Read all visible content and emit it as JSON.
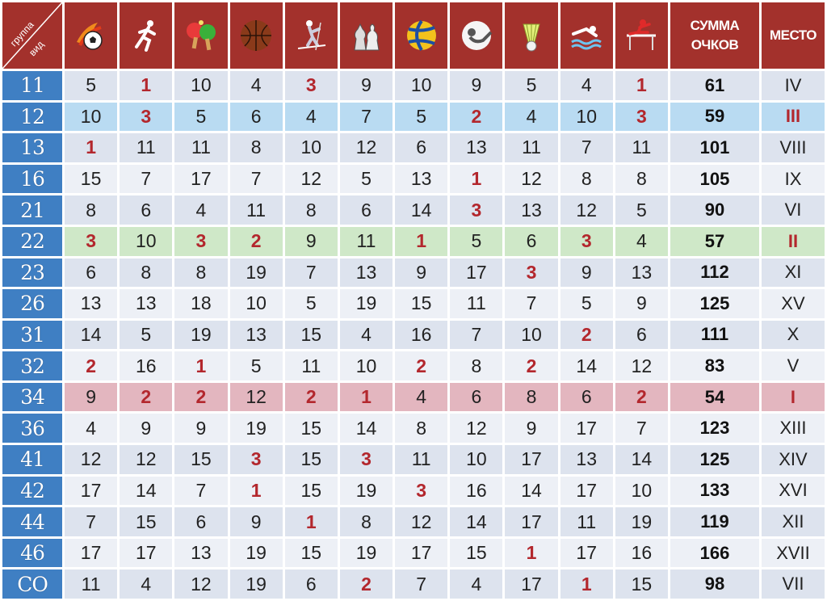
{
  "header": {
    "corner_top": "группа",
    "corner_bottom": "вид",
    "sports_icons": [
      "football-icon",
      "running-icon",
      "table-tennis-icon",
      "basketball-icon",
      "skiing-icon",
      "chess-icon",
      "volleyball-icon",
      "shooting-icon",
      "badminton-icon",
      "swimming-icon",
      "hurdles-icon"
    ],
    "sum_line1": "СУММА",
    "sum_line2": "ОЧКОВ",
    "place": "МЕСТО"
  },
  "colors": {
    "header_bg": "#a3312c",
    "group_bg": "#3f7fc3",
    "top_value": "#b3272d",
    "highlight_blue": "#b9dbf2",
    "highlight_green": "#cfe8c8",
    "highlight_red": "#e3b6bf"
  },
  "rows": [
    {
      "group": "11",
      "scores": [
        "5",
        "1",
        "10",
        "4",
        "3",
        "9",
        "10",
        "9",
        "5",
        "4",
        "1"
      ],
      "sum": "61",
      "place": "IV"
    },
    {
      "group": "12",
      "scores": [
        "10",
        "3",
        "5",
        "6",
        "4",
        "7",
        "5",
        "2",
        "4",
        "10",
        "3"
      ],
      "sum": "59",
      "place": "III"
    },
    {
      "group": "13",
      "scores": [
        "1",
        "11",
        "11",
        "8",
        "10",
        "12",
        "6",
        "13",
        "11",
        "7",
        "11"
      ],
      "sum": "101",
      "place": "VIII"
    },
    {
      "group": "16",
      "scores": [
        "15",
        "7",
        "17",
        "7",
        "12",
        "5",
        "13",
        "1",
        "12",
        "8",
        "8"
      ],
      "sum": "105",
      "place": "IX"
    },
    {
      "group": "21",
      "scores": [
        "8",
        "6",
        "4",
        "11",
        "8",
        "6",
        "14",
        "3",
        "13",
        "12",
        "5"
      ],
      "sum": "90",
      "place": "VI"
    },
    {
      "group": "22",
      "scores": [
        "3",
        "10",
        "3",
        "2",
        "9",
        "11",
        "1",
        "5",
        "6",
        "3",
        "4"
      ],
      "sum": "57",
      "place": "II"
    },
    {
      "group": "23",
      "scores": [
        "6",
        "8",
        "8",
        "19",
        "7",
        "13",
        "9",
        "17",
        "3",
        "9",
        "13"
      ],
      "sum": "112",
      "place": "XI"
    },
    {
      "group": "26",
      "scores": [
        "13",
        "13",
        "18",
        "10",
        "5",
        "19",
        "15",
        "11",
        "7",
        "5",
        "9"
      ],
      "sum": "125",
      "place": "XV"
    },
    {
      "group": "31",
      "scores": [
        "14",
        "5",
        "19",
        "13",
        "15",
        "4",
        "16",
        "7",
        "10",
        "2",
        "6"
      ],
      "sum": "111",
      "place": "X"
    },
    {
      "group": "32",
      "scores": [
        "2",
        "16",
        "1",
        "5",
        "11",
        "10",
        "2",
        "8",
        "2",
        "14",
        "12"
      ],
      "sum": "83",
      "place": "V"
    },
    {
      "group": "34",
      "scores": [
        "9",
        "2",
        "2",
        "12",
        "2",
        "1",
        "4",
        "6",
        "8",
        "6",
        "2"
      ],
      "sum": "54",
      "place": "I"
    },
    {
      "group": "36",
      "scores": [
        "4",
        "9",
        "9",
        "19",
        "15",
        "14",
        "8",
        "12",
        "9",
        "17",
        "7"
      ],
      "sum": "123",
      "place": "XIII"
    },
    {
      "group": "41",
      "scores": [
        "12",
        "12",
        "15",
        "3",
        "15",
        "3",
        "11",
        "10",
        "17",
        "13",
        "14"
      ],
      "sum": "125",
      "place": "XIV"
    },
    {
      "group": "42",
      "scores": [
        "17",
        "14",
        "7",
        "1",
        "15",
        "19",
        "3",
        "16",
        "14",
        "17",
        "10"
      ],
      "sum": "133",
      "place": "XVI"
    },
    {
      "group": "44",
      "scores": [
        "7",
        "15",
        "6",
        "9",
        "1",
        "8",
        "12",
        "14",
        "17",
        "11",
        "19"
      ],
      "sum": "119",
      "place": "XII"
    },
    {
      "group": "46",
      "scores": [
        "17",
        "17",
        "13",
        "19",
        "15",
        "19",
        "17",
        "15",
        "1",
        "17",
        "16"
      ],
      "sum": "166",
      "place": "XVII"
    },
    {
      "group": "СО",
      "scores": [
        "11",
        "4",
        "12",
        "19",
        "6",
        "2",
        "7",
        "4",
        "17",
        "1",
        "15"
      ],
      "sum": "98",
      "place": "VII"
    }
  ]
}
